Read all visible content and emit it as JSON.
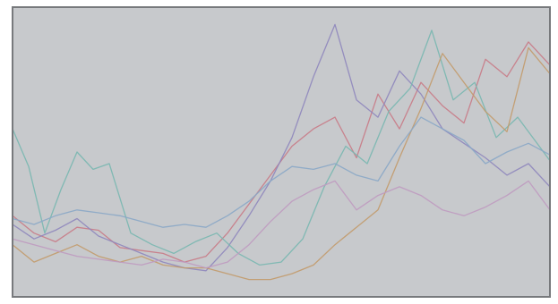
{
  "chart_data": {
    "type": "line",
    "title": "",
    "xlabel": "",
    "ylabel": "",
    "grid": false,
    "legend": "none",
    "x_range": [
      0,
      100
    ],
    "y_range": [
      0,
      100
    ],
    "background": "#c7c9cc",
    "frame_color": "#77797c",
    "series": [
      {
        "color": "#c87a86",
        "x": [
          0,
          4,
          8,
          12,
          16,
          20,
          24,
          28,
          32,
          36,
          40,
          44,
          48,
          52,
          56,
          60,
          64,
          68,
          72,
          76,
          80,
          84,
          88,
          92,
          96,
          100
        ],
        "y": [
          28,
          22,
          19,
          24,
          23,
          17,
          16,
          15,
          12,
          14,
          22,
          32,
          42,
          52,
          58,
          62,
          48,
          70,
          58,
          74,
          66,
          60,
          82,
          76,
          88,
          80
        ]
      },
      {
        "color": "#8e86bd",
        "x": [
          0,
          4,
          8,
          12,
          16,
          20,
          24,
          28,
          32,
          36,
          40,
          44,
          48,
          52,
          56,
          60,
          64,
          68,
          72,
          76,
          80,
          84,
          88,
          92,
          96,
          100
        ],
        "y": [
          25,
          20,
          23,
          27,
          21,
          18,
          15,
          12,
          10,
          9,
          17,
          28,
          40,
          55,
          76,
          94,
          68,
          62,
          78,
          70,
          58,
          53,
          48,
          42,
          46,
          38
        ]
      },
      {
        "color": "#78b7b0",
        "x": [
          0,
          3,
          6,
          9,
          12,
          15,
          18,
          19,
          22,
          26,
          30,
          34,
          38,
          42,
          46,
          50,
          54,
          58,
          62,
          66,
          70,
          74,
          78,
          82,
          86,
          90,
          94,
          98,
          100
        ],
        "y": [
          58,
          45,
          22,
          37,
          50,
          44,
          46,
          40,
          22,
          18,
          15,
          19,
          22,
          15,
          11,
          12,
          20,
          38,
          52,
          46,
          64,
          72,
          92,
          68,
          74,
          55,
          62,
          52,
          47
        ]
      },
      {
        "color": "#c29a6a",
        "x": [
          0,
          4,
          8,
          12,
          16,
          20,
          24,
          28,
          32,
          36,
          40,
          44,
          48,
          52,
          56,
          60,
          64,
          68,
          72,
          76,
          80,
          84,
          88,
          92,
          96,
          100
        ],
        "y": [
          18,
          12,
          15,
          18,
          14,
          12,
          14,
          11,
          10,
          10,
          8,
          6,
          6,
          8,
          11,
          18,
          24,
          30,
          48,
          65,
          84,
          74,
          64,
          57,
          86,
          77
        ]
      },
      {
        "color": "#8aa7c6",
        "x": [
          0,
          4,
          8,
          12,
          16,
          20,
          24,
          28,
          32,
          36,
          40,
          44,
          48,
          52,
          56,
          60,
          64,
          68,
          72,
          76,
          80,
          84,
          88,
          92,
          96,
          100
        ],
        "y": [
          27,
          25,
          28,
          30,
          29,
          28,
          26,
          24,
          25,
          24,
          28,
          33,
          40,
          45,
          44,
          46,
          42,
          40,
          52,
          62,
          58,
          54,
          46,
          50,
          53,
          49
        ]
      },
      {
        "color": "#bf9ac0",
        "x": [
          0,
          4,
          8,
          12,
          16,
          20,
          24,
          28,
          32,
          36,
          40,
          44,
          48,
          52,
          56,
          60,
          64,
          68,
          72,
          76,
          80,
          84,
          88,
          92,
          96,
          100
        ],
        "y": [
          20,
          18,
          16,
          14,
          13,
          12,
          11,
          13,
          12,
          10,
          12,
          18,
          26,
          33,
          37,
          40,
          30,
          35,
          38,
          35,
          30,
          28,
          31,
          35,
          40,
          30
        ]
      }
    ]
  }
}
